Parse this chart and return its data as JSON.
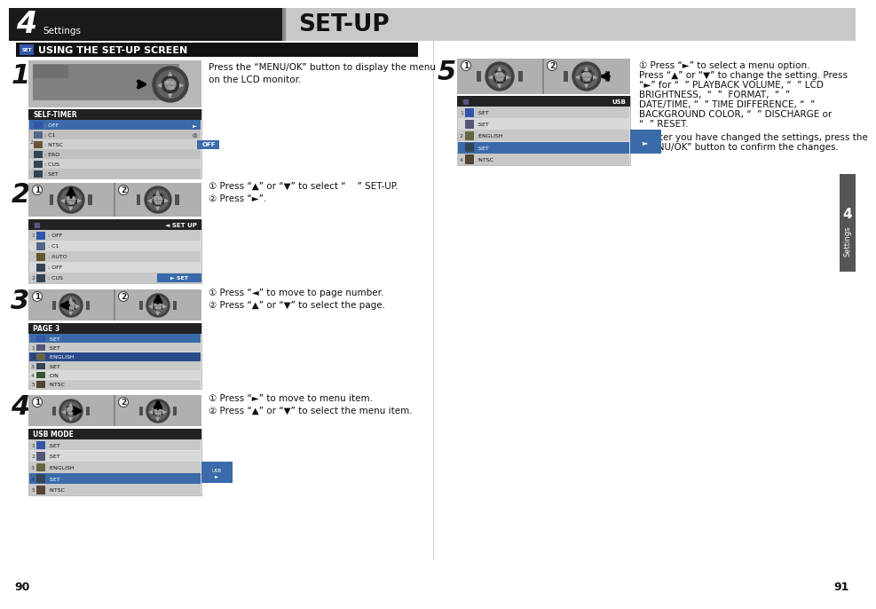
{
  "page_title_num": "4",
  "page_title_sub": "Settings",
  "page_title_main": "SET-UP",
  "section_title": "USING THE SET-UP SCREEN",
  "page_left": "90",
  "page_right": "91",
  "bg_color": "#ffffff",
  "header_left_bg": "#1a1a1a",
  "header_right_bg": "#c8c8c8",
  "section_bar_bg": "#111111",
  "step1_text": "Press the “MENU/OK” button to display the menu\non the LCD monitor.",
  "step2_text1": "① Press “▲” or “▼” to select “    ” SET-UP.",
  "step2_text2": "② Press “►”.",
  "step3_text1": "① Press “◄” to move to page number.",
  "step3_text2": "② Press “▲” or “▼” to select the page.",
  "step4_text1": "① Press “►” to move to menu item.",
  "step4_text2": "② Press “▲” or “▼” to select the menu item.",
  "step5_text1": "① Press “►” to select a menu option.",
  "step5_text2a": "Press “▲” or “▼” to change the setting. Press",
  "step5_text2b": "“►” for “  ” PLAYBACK VOLUME, “  ” LCD",
  "step5_text2c": "BRIGHTNESS,  “  ”  FORMAT,  “  ”",
  "step5_text2d": "DATE/TIME, “  ” TIME DIFFERENCE, “  ”",
  "step5_text2e": "BACKGROUND COLOR, “  ” DISCHARGE or",
  "step5_text2f": "“  ” RESET.",
  "step5_text3a": "② After you have changed the settings, press the",
  "step5_text3b": "“MENU/OK” button to confirm the changes.",
  "tab_bg": "#555555"
}
